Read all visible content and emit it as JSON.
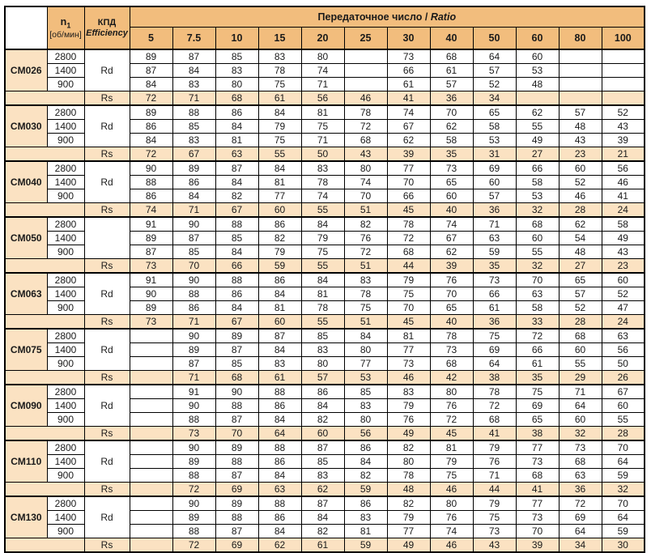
{
  "header": {
    "n1_label": "n",
    "n1_sub": "1",
    "n1_unit": "[об/мин]",
    "efficiency_label_ru": "КПД",
    "efficiency_label_en": "Efficiency",
    "ratio_label_ru": "Передаточное число /",
    "ratio_label_en": "Ratio",
    "ratios": [
      "5",
      "7.5",
      "10",
      "15",
      "20",
      "25",
      "30",
      "40",
      "50",
      "60",
      "80",
      "100"
    ]
  },
  "colors": {
    "header_bg": "#F2BD7D",
    "light_bg": "#FBE2C2",
    "border": "#000000"
  },
  "groups": [
    {
      "model": "CM026",
      "efficiency_symbol": "Rd",
      "speed_rows": [
        {
          "speed": "2800",
          "values": [
            "89",
            "87",
            "85",
            "83",
            "80",
            "",
            "73",
            "68",
            "64",
            "60",
            "",
            ""
          ]
        },
        {
          "speed": "1400",
          "values": [
            "87",
            "84",
            "83",
            "78",
            "74",
            "",
            "66",
            "61",
            "57",
            "53",
            "",
            ""
          ]
        },
        {
          "speed": "900",
          "values": [
            "84",
            "83",
            "80",
            "75",
            "71",
            "",
            "61",
            "57",
            "52",
            "48",
            "",
            ""
          ]
        }
      ],
      "rs_row": {
        "label": "Rs",
        "values": [
          "72",
          "71",
          "68",
          "61",
          "56",
          "46",
          "41",
          "36",
          "34",
          "",
          "",
          ""
        ]
      }
    },
    {
      "model": "CM030",
      "efficiency_symbol": "Rd",
      "speed_rows": [
        {
          "speed": "2800",
          "values": [
            "89",
            "88",
            "86",
            "84",
            "81",
            "78",
            "74",
            "70",
            "65",
            "62",
            "57",
            "52"
          ]
        },
        {
          "speed": "1400",
          "values": [
            "86",
            "85",
            "84",
            "79",
            "75",
            "72",
            "67",
            "62",
            "58",
            "55",
            "48",
            "43"
          ]
        },
        {
          "speed": "900",
          "values": [
            "84",
            "83",
            "81",
            "75",
            "71",
            "68",
            "62",
            "58",
            "53",
            "49",
            "43",
            "39"
          ]
        }
      ],
      "rs_row": {
        "label": "Rs",
        "values": [
          "72",
          "67",
          "63",
          "55",
          "50",
          "43",
          "39",
          "35",
          "31",
          "27",
          "23",
          "21"
        ]
      }
    },
    {
      "model": "CM040",
      "efficiency_symbol": "Rd",
      "speed_rows": [
        {
          "speed": "2800",
          "values": [
            "90",
            "89",
            "87",
            "84",
            "83",
            "80",
            "77",
            "73",
            "69",
            "66",
            "60",
            "56"
          ]
        },
        {
          "speed": "1400",
          "values": [
            "88",
            "86",
            "84",
            "81",
            "78",
            "74",
            "70",
            "65",
            "60",
            "58",
            "52",
            "46"
          ]
        },
        {
          "speed": "900",
          "values": [
            "86",
            "84",
            "82",
            "77",
            "74",
            "70",
            "66",
            "60",
            "57",
            "53",
            "46",
            "41"
          ]
        }
      ],
      "rs_row": {
        "label": "Rs",
        "values": [
          "74",
          "71",
          "67",
          "60",
          "55",
          "51",
          "45",
          "40",
          "36",
          "32",
          "28",
          "24"
        ]
      }
    },
    {
      "model": "CM050",
      "efficiency_symbol": "",
      "speed_rows": [
        {
          "speed": "2800",
          "values": [
            "91",
            "90",
            "88",
            "86",
            "84",
            "82",
            "78",
            "74",
            "71",
            "68",
            "62",
            "58"
          ]
        },
        {
          "speed": "1400",
          "values": [
            "89",
            "87",
            "85",
            "82",
            "79",
            "76",
            "72",
            "67",
            "63",
            "60",
            "54",
            "49"
          ]
        },
        {
          "speed": "900",
          "values": [
            "87",
            "85",
            "84",
            "79",
            "75",
            "72",
            "68",
            "62",
            "59",
            "55",
            "48",
            "43"
          ]
        }
      ],
      "rs_row": {
        "label": "Rs",
        "values": [
          "73",
          "70",
          "66",
          "59",
          "55",
          "51",
          "44",
          "39",
          "35",
          "32",
          "27",
          "23"
        ]
      }
    },
    {
      "model": "CM063",
      "efficiency_symbol": "Rd",
      "speed_rows": [
        {
          "speed": "2800",
          "values": [
            "91",
            "90",
            "88",
            "86",
            "84",
            "83",
            "79",
            "76",
            "73",
            "70",
            "65",
            "60"
          ]
        },
        {
          "speed": "1400",
          "values": [
            "90",
            "88",
            "86",
            "84",
            "81",
            "78",
            "75",
            "70",
            "66",
            "63",
            "57",
            "52"
          ]
        },
        {
          "speed": "900",
          "values": [
            "89",
            "86",
            "84",
            "81",
            "78",
            "75",
            "70",
            "65",
            "61",
            "58",
            "52",
            "47"
          ]
        }
      ],
      "rs_row": {
        "label": "Rs",
        "values": [
          "73",
          "71",
          "67",
          "60",
          "55",
          "51",
          "45",
          "40",
          "36",
          "33",
          "28",
          "24"
        ]
      }
    },
    {
      "model": "CM075",
      "efficiency_symbol": "Rd",
      "speed_rows": [
        {
          "speed": "2800",
          "values": [
            "",
            "90",
            "89",
            "87",
            "85",
            "84",
            "81",
            "78",
            "75",
            "72",
            "68",
            "63"
          ]
        },
        {
          "speed": "1400",
          "values": [
            "",
            "89",
            "87",
            "84",
            "83",
            "80",
            "77",
            "73",
            "69",
            "66",
            "60",
            "56"
          ]
        },
        {
          "speed": "900",
          "values": [
            "",
            "87",
            "85",
            "83",
            "80",
            "77",
            "73",
            "68",
            "64",
            "61",
            "55",
            "50"
          ]
        }
      ],
      "rs_row": {
        "label": "Rs",
        "values": [
          "",
          "71",
          "68",
          "61",
          "57",
          "53",
          "46",
          "42",
          "38",
          "35",
          "29",
          "26"
        ]
      }
    },
    {
      "model": "CM090",
      "efficiency_symbol": "Rd",
      "speed_rows": [
        {
          "speed": "2800",
          "values": [
            "",
            "91",
            "90",
            "88",
            "86",
            "85",
            "83",
            "80",
            "78",
            "75",
            "71",
            "67"
          ]
        },
        {
          "speed": "1400",
          "values": [
            "",
            "90",
            "88",
            "86",
            "84",
            "83",
            "79",
            "76",
            "72",
            "69",
            "64",
            "60"
          ]
        },
        {
          "speed": "900",
          "values": [
            "",
            "88",
            "87",
            "84",
            "82",
            "80",
            "76",
            "72",
            "68",
            "65",
            "60",
            "55"
          ]
        }
      ],
      "rs_row": {
        "label": "Rs",
        "values": [
          "",
          "73",
          "70",
          "64",
          "60",
          "56",
          "49",
          "45",
          "41",
          "38",
          "32",
          "28"
        ]
      }
    },
    {
      "model": "CM110",
      "efficiency_symbol": "Rd",
      "speed_rows": [
        {
          "speed": "2800",
          "values": [
            "",
            "90",
            "89",
            "88",
            "87",
            "86",
            "82",
            "81",
            "79",
            "77",
            "73",
            "70"
          ]
        },
        {
          "speed": "1400",
          "values": [
            "",
            "89",
            "88",
            "86",
            "85",
            "84",
            "80",
            "79",
            "76",
            "73",
            "68",
            "64"
          ]
        },
        {
          "speed": "900",
          "values": [
            "",
            "88",
            "87",
            "84",
            "83",
            "82",
            "78",
            "75",
            "71",
            "68",
            "63",
            "59"
          ]
        }
      ],
      "rs_row": {
        "label": "Rs",
        "values": [
          "",
          "72",
          "69",
          "63",
          "62",
          "59",
          "48",
          "46",
          "44",
          "41",
          "36",
          "32"
        ]
      }
    },
    {
      "model": "CM130",
      "efficiency_symbol": "Rd",
      "speed_rows": [
        {
          "speed": "2800",
          "values": [
            "",
            "90",
            "89",
            "88",
            "87",
            "86",
            "82",
            "80",
            "79",
            "77",
            "72",
            "70"
          ]
        },
        {
          "speed": "1400",
          "values": [
            "",
            "89",
            "88",
            "86",
            "84",
            "83",
            "79",
            "76",
            "75",
            "73",
            "69",
            "64"
          ]
        },
        {
          "speed": "900",
          "values": [
            "",
            "88",
            "87",
            "84",
            "82",
            "81",
            "77",
            "74",
            "73",
            "70",
            "64",
            "59"
          ]
        }
      ],
      "rs_row": {
        "label": "Rs",
        "values": [
          "",
          "72",
          "69",
          "62",
          "61",
          "59",
          "49",
          "46",
          "43",
          "39",
          "34",
          "30"
        ]
      }
    }
  ]
}
